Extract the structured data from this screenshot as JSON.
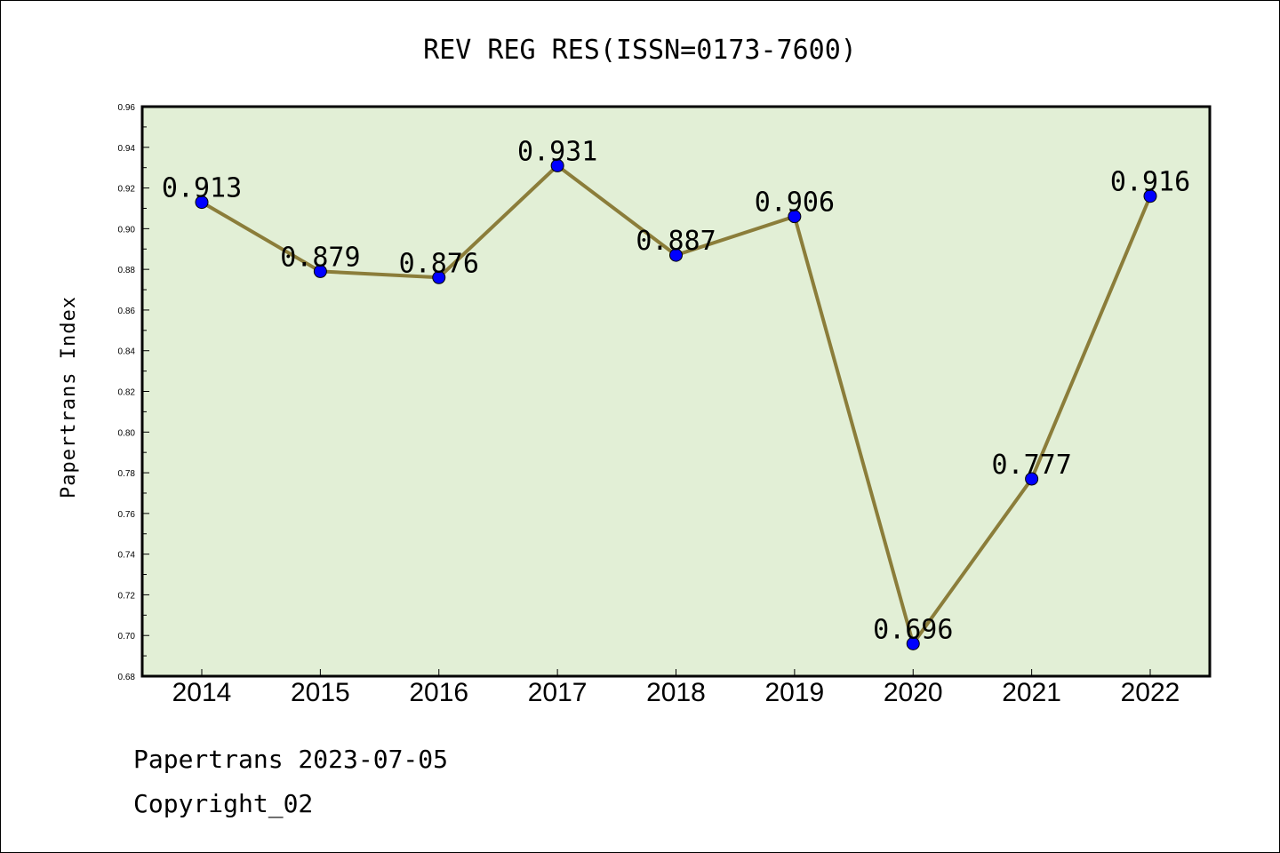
{
  "chart_data": {
    "type": "line",
    "title": "REV REG RES(ISSN=0173-7600)",
    "ylabel": "Papertrans Index",
    "xlabel": "",
    "categories": [
      "2014",
      "2015",
      "2016",
      "2017",
      "2018",
      "2019",
      "2020",
      "2021",
      "2022"
    ],
    "series": [
      {
        "values": [
          0.913,
          0.879,
          0.876,
          0.931,
          0.887,
          0.906,
          0.696,
          0.777,
          0.916
        ]
      }
    ],
    "data_labels": [
      "0.913",
      "0.879",
      "0.876",
      "0.931",
      "0.887",
      "0.906",
      "0.696",
      "0.777",
      "0.916"
    ],
    "ylim": [
      0.68,
      0.96
    ],
    "yticks": [
      "0.68",
      "0.70",
      "0.72",
      "0.74",
      "0.76",
      "0.78",
      "0.80",
      "0.82",
      "0.84",
      "0.86",
      "0.88",
      "0.90",
      "0.92",
      "0.94",
      "0.96"
    ],
    "grid": false,
    "colors": {
      "plot_background": "#e2efd6",
      "line": "#8b7d3a",
      "marker": "#0000ff"
    }
  },
  "footer": {
    "line1": "Papertrans 2023-07-05",
    "line2": "Copyright_02"
  }
}
